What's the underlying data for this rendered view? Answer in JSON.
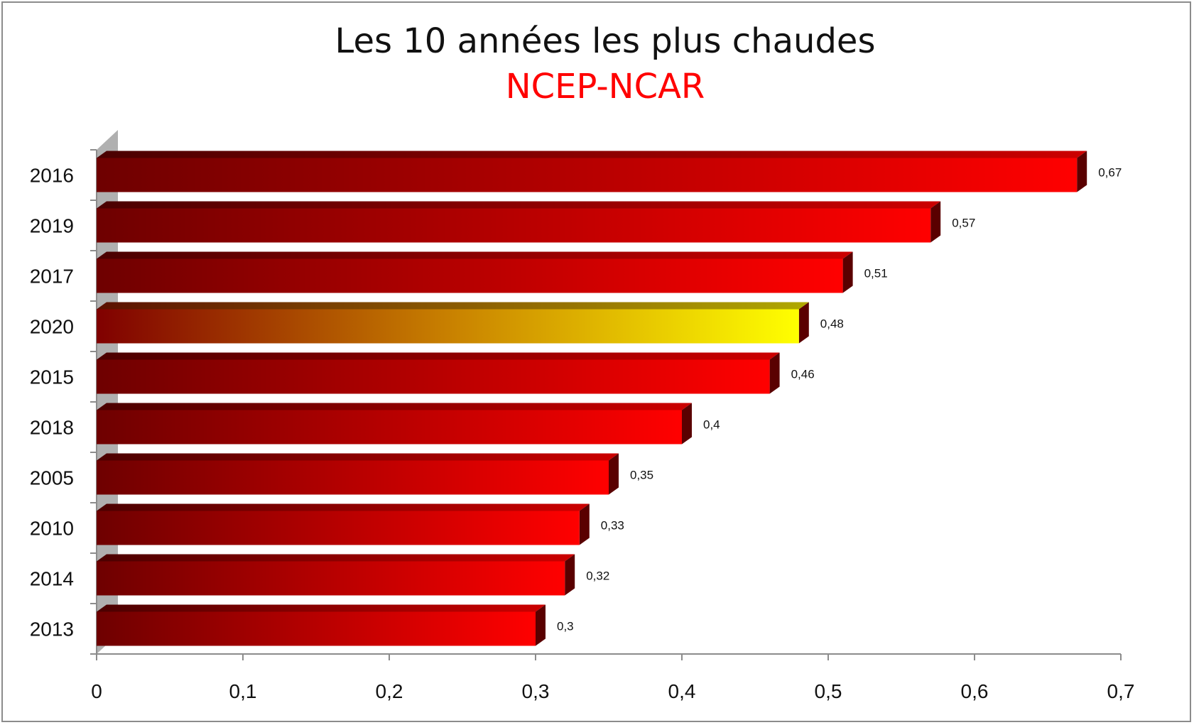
{
  "chart_data": {
    "type": "bar",
    "orientation": "horizontal",
    "title": "Les 10 années les plus chaudes",
    "subtitle": "NCEP-NCAR",
    "categories": [
      "2016",
      "2019",
      "2017",
      "2020",
      "2015",
      "2018",
      "2005",
      "2010",
      "2014",
      "2013"
    ],
    "values": [
      0.67,
      0.57,
      0.51,
      0.48,
      0.46,
      0.4,
      0.35,
      0.33,
      0.32,
      0.3
    ],
    "data_labels": [
      "0,67",
      "0,57",
      "0,51",
      "0,48",
      "0,46",
      "0,4",
      "0,35",
      "0,33",
      "0,32",
      "0,3"
    ],
    "highlighted_category": "2020",
    "xlim": [
      0,
      0.7
    ],
    "x_ticks": [
      0,
      0.1,
      0.2,
      0.3,
      0.4,
      0.5,
      0.6,
      0.7
    ],
    "x_tick_labels": [
      "0",
      "0,1",
      "0,2",
      "0,3",
      "0,4",
      "0,5",
      "0,6",
      "0,7"
    ],
    "grid": false,
    "legend": "none",
    "colors": {
      "bar_start": "#6e0000",
      "bar_end": "#ff0000",
      "highlight_start": "#800000",
      "highlight_end": "#ffff00",
      "subtitle": "#ff0000"
    }
  }
}
